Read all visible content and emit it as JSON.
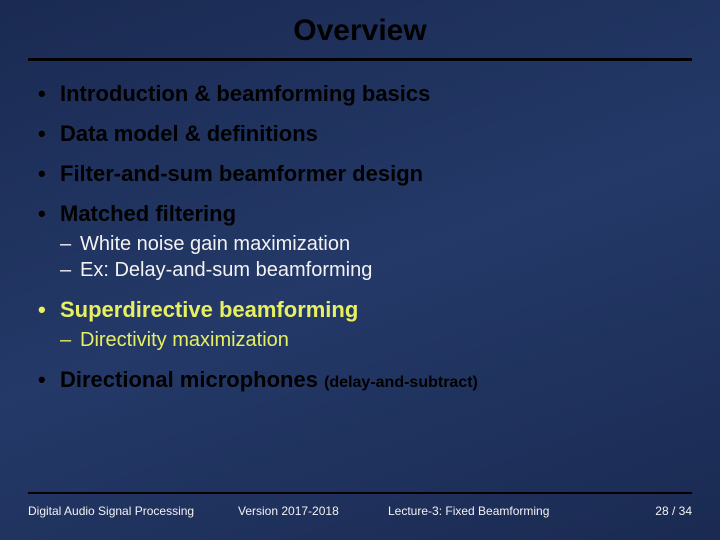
{
  "title": "Overview",
  "bullets": [
    {
      "text": "Introduction & beamforming basics",
      "highlight": false
    },
    {
      "text": "Data model & definitions",
      "highlight": false
    },
    {
      "text": "Filter-and-sum beamformer design",
      "highlight": false
    },
    {
      "text": "Matched filtering",
      "highlight": false,
      "sub": {
        "style": "white",
        "items": [
          "White noise gain maximization",
          "Ex: Delay-and-sum beamforming"
        ]
      }
    },
    {
      "text": "Superdirective beamforming",
      "highlight": true,
      "sub": {
        "style": "yellow",
        "items": [
          "Directivity maximization"
        ]
      }
    },
    {
      "text": "Directional microphones",
      "highlight": false,
      "note": "(delay-and-subtract)"
    }
  ],
  "footer": {
    "left": "Digital Audio Signal Processing",
    "version": "Version 2017-2018",
    "lecture": "Lecture-3: Fixed Beamforming",
    "page": "28 / 34"
  },
  "colors": {
    "highlight": "#e6f060",
    "bg_gradient_a": "#1a2a52",
    "bg_gradient_b": "#243968",
    "text_black": "#000000",
    "text_white": "#f2f2f2"
  }
}
